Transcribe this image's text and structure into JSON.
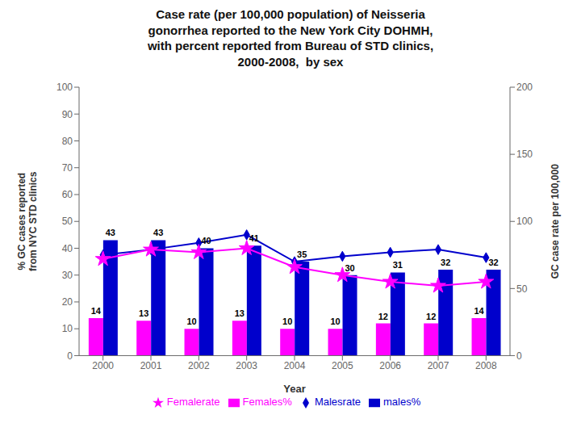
{
  "chart_data": {
    "type": "bar",
    "title": "Case rate (per 100,000 population) of Neisseria\ngonorrhea reported to the New York City DOHMH,\nwith percent reported from Bureau of STD clinics,\n2000-2008,  by sex",
    "xlabel": "Year",
    "ylabel": "% GC cases reported\nfrom NYC STD clinics",
    "y2label": "GC case rate per 100,000",
    "categories": [
      "2000",
      "2001",
      "2002",
      "2003",
      "2004",
      "2005",
      "2006",
      "2007",
      "2008"
    ],
    "series": [
      {
        "name": "Females%",
        "type": "bar",
        "color": "#FF00FF",
        "data_labels": true,
        "values": [
          14,
          13,
          10,
          13,
          10,
          10,
          12,
          12,
          14
        ]
      },
      {
        "name": "males%",
        "type": "bar",
        "color": "#0000CC",
        "data_labels": true,
        "values": [
          43,
          43,
          40,
          41,
          35,
          30,
          31,
          32,
          32
        ]
      },
      {
        "name": "Malesrate",
        "type": "line",
        "axis": "y2",
        "color": "#0000CC",
        "marker": "diamond",
        "values": [
          75,
          79,
          84,
          90,
          70,
          74,
          77,
          79,
          73
        ]
      },
      {
        "name": "Femalerate",
        "type": "line",
        "axis": "y2",
        "color": "#FF00FF",
        "marker": "star",
        "values": [
          72,
          79,
          77,
          80,
          66,
          60,
          55,
          52,
          55
        ]
      }
    ],
    "ylim": [
      0,
      100
    ],
    "yticks": [
      0,
      10,
      20,
      30,
      40,
      50,
      60,
      70,
      80,
      90,
      100
    ],
    "y2lim": [
      0,
      200
    ],
    "y2ticks": [
      0,
      50,
      100,
      150,
      200
    ],
    "grid": false,
    "legend": "bottom"
  }
}
